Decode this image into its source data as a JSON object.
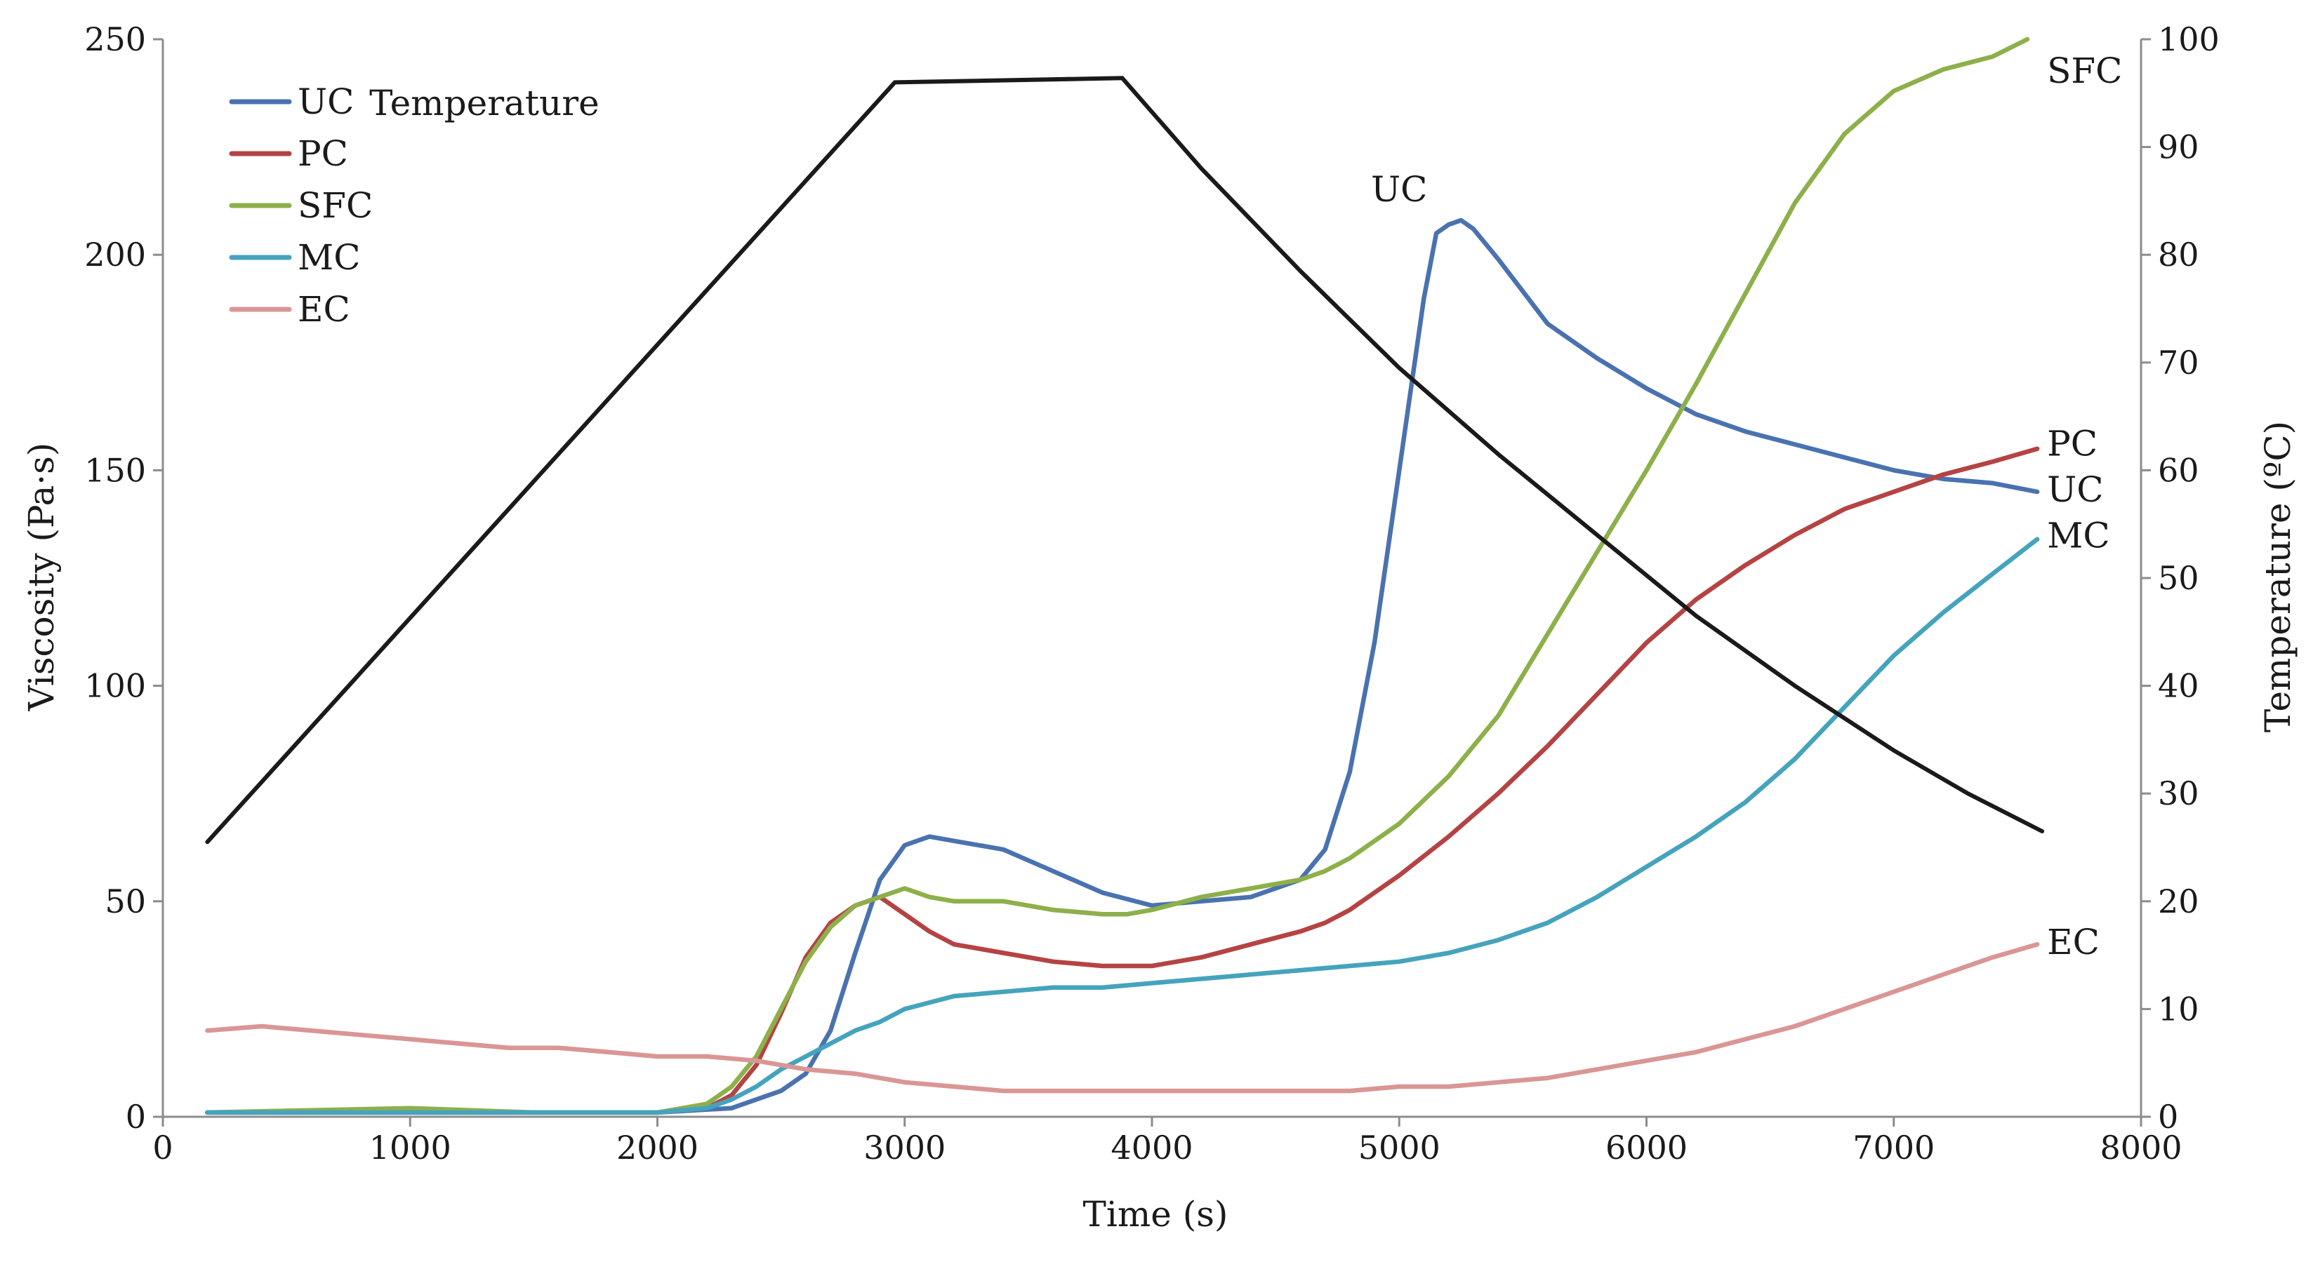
{
  "chart_data": {
    "type": "line",
    "title": "",
    "xlabel": "Time (s)",
    "ylabel": "Viscosity (Pa·s)",
    "y2label": "Temperature (ºC)",
    "xlim": [
      0,
      8000
    ],
    "ylim": [
      0,
      250
    ],
    "y2lim": [
      0,
      100
    ],
    "xticks": [
      "0",
      "1000",
      "2000",
      "3000",
      "4000",
      "5000",
      "6000",
      "7000",
      "8000"
    ],
    "yticks": [
      "0",
      "50",
      "100",
      "150",
      "200",
      "250"
    ],
    "y2ticks": [
      "0",
      "10",
      "20",
      "30",
      "40",
      "50",
      "60",
      "70",
      "80",
      "90",
      "100"
    ],
    "grid": false,
    "legend_position": "top-left",
    "series": [
      {
        "name": "UC",
        "color": "#4a72b0",
        "axis": "left",
        "end_label": "UC",
        "x": [
          180,
          1000,
          1500,
          2000,
          2300,
          2500,
          2600,
          2700,
          2800,
          2900,
          3000,
          3100,
          3200,
          3300,
          3400,
          3600,
          3800,
          4000,
          4200,
          4400,
          4600,
          4700,
          4800,
          4900,
          5000,
          5100,
          5150,
          5200,
          5250,
          5300,
          5400,
          5600,
          5800,
          6000,
          6200,
          6400,
          6600,
          6800,
          7000,
          7200,
          7400,
          7580
        ],
        "values": [
          1,
          1,
          1,
          1,
          2,
          6,
          10,
          20,
          38,
          55,
          63,
          65,
          64,
          63,
          62,
          57,
          52,
          49,
          50,
          51,
          55,
          62,
          80,
          110,
          150,
          190,
          205,
          207,
          208,
          206,
          199,
          184,
          176,
          169,
          163,
          159,
          156,
          153,
          150,
          148,
          147,
          145
        ]
      },
      {
        "name": "PC",
        "color": "#b54343",
        "axis": "left",
        "end_label": "PC",
        "x": [
          180,
          1000,
          1500,
          2000,
          2200,
          2300,
          2400,
          2500,
          2600,
          2700,
          2800,
          2900,
          3000,
          3100,
          3200,
          3400,
          3600,
          3800,
          3900,
          4000,
          4200,
          4400,
          4600,
          4700,
          4800,
          4900,
          5000,
          5200,
          5400,
          5600,
          5800,
          6000,
          6200,
          6400,
          6600,
          6800,
          7000,
          7200,
          7400,
          7580
        ],
        "values": [
          1,
          1,
          1,
          1,
          2,
          5,
          12,
          24,
          37,
          45,
          49,
          51,
          47,
          43,
          40,
          38,
          36,
          35,
          35,
          35,
          37,
          40,
          43,
          45,
          48,
          52,
          56,
          65,
          75,
          86,
          98,
          110,
          120,
          128,
          135,
          141,
          145,
          149,
          152,
          155
        ]
      },
      {
        "name": "SFC",
        "color": "#8db04a",
        "axis": "left",
        "end_label": "SFC",
        "x": [
          180,
          1000,
          1500,
          2000,
          2200,
          2300,
          2400,
          2500,
          2600,
          2700,
          2800,
          2900,
          3000,
          3100,
          3200,
          3400,
          3600,
          3800,
          3900,
          4000,
          4200,
          4400,
          4600,
          4700,
          4800,
          4900,
          5000,
          5200,
          5400,
          5600,
          5800,
          6000,
          6200,
          6400,
          6600,
          6800,
          7000,
          7200,
          7400,
          7540
        ],
        "values": [
          1,
          2,
          1,
          1,
          3,
          7,
          14,
          25,
          36,
          44,
          49,
          51,
          53,
          51,
          50,
          50,
          48,
          47,
          47,
          48,
          51,
          53,
          55,
          57,
          60,
          64,
          68,
          79,
          93,
          112,
          131,
          150,
          170,
          191,
          212,
          228,
          238,
          243,
          246,
          250
        ]
      },
      {
        "name": "MC",
        "color": "#45a3bd",
        "axis": "left",
        "end_label": "MC",
        "x": [
          180,
          1000,
          1500,
          2000,
          2200,
          2300,
          2400,
          2500,
          2600,
          2700,
          2800,
          2900,
          3000,
          3200,
          3400,
          3600,
          3800,
          4000,
          4200,
          4400,
          4600,
          4800,
          5000,
          5200,
          5400,
          5600,
          5800,
          6000,
          6200,
          6400,
          6600,
          6800,
          7000,
          7200,
          7400,
          7580
        ],
        "values": [
          1,
          1,
          1,
          1,
          2,
          4,
          7,
          11,
          14,
          17,
          20,
          22,
          25,
          28,
          29,
          30,
          30,
          31,
          32,
          33,
          34,
          35,
          36,
          38,
          41,
          45,
          51,
          58,
          65,
          73,
          83,
          95,
          107,
          117,
          126,
          134
        ]
      },
      {
        "name": "EC",
        "color": "#d99694",
        "axis": "left",
        "end_label": "EC",
        "x": [
          180,
          400,
          600,
          800,
          1000,
          1200,
          1400,
          1600,
          1800,
          2000,
          2200,
          2400,
          2600,
          2800,
          3000,
          3200,
          3400,
          3600,
          3800,
          4000,
          4200,
          4400,
          4600,
          4800,
          5000,
          5200,
          5400,
          5600,
          5800,
          6000,
          6200,
          6400,
          6600,
          6800,
          7000,
          7200,
          7400,
          7580
        ],
        "values": [
          20,
          21,
          20,
          19,
          18,
          17,
          16,
          16,
          15,
          14,
          14,
          13,
          11,
          10,
          8,
          7,
          6,
          6,
          6,
          6,
          6,
          6,
          6,
          6,
          7,
          7,
          8,
          9,
          11,
          13,
          15,
          18,
          21,
          25,
          29,
          33,
          37,
          40
        ]
      },
      {
        "name": "Temperature",
        "color": "#1a1a1a",
        "axis": "right",
        "in_legend": false,
        "x": [
          180,
          2960,
          3880,
          4200,
          4600,
          5000,
          5400,
          5800,
          6200,
          6600,
          7000,
          7300,
          7600
        ],
        "values": [
          25.5,
          96,
          96.4,
          88,
          78.5,
          69.5,
          61.5,
          54,
          46.5,
          40,
          34,
          30,
          26.5
        ]
      }
    ],
    "annotations": [
      {
        "text": "Temperature",
        "at_x": 1300,
        "at_y": 235
      },
      {
        "text": "UC",
        "at_x": 5000,
        "at_y": 215
      }
    ]
  }
}
